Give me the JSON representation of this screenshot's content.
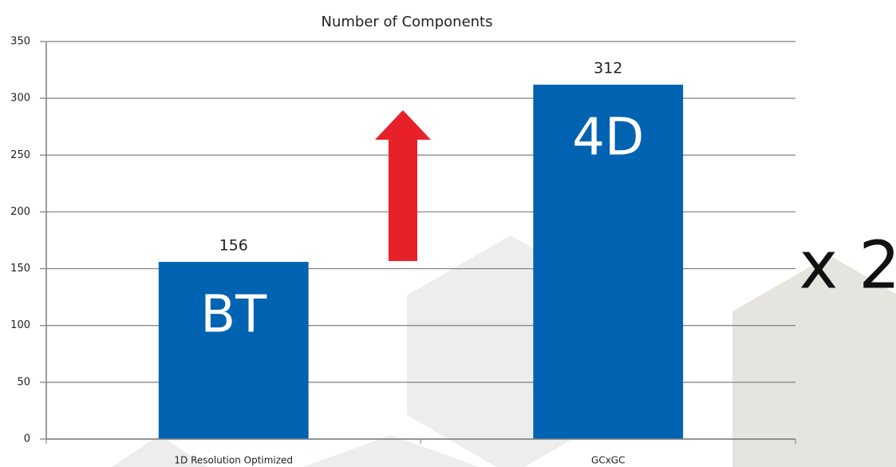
{
  "chart_data": {
    "type": "bar",
    "title": "Number of Components",
    "categories": [
      "1D Resolution Optimized",
      "GCxGC"
    ],
    "values": [
      156,
      312
    ],
    "bar_labels": [
      "BT",
      "4D"
    ],
    "annotation": "x 2",
    "color": "#0063b1",
    "ylim": [
      0,
      350
    ],
    "yticks": [
      0,
      50,
      100,
      150,
      200,
      250,
      300,
      350
    ],
    "grid": true
  }
}
